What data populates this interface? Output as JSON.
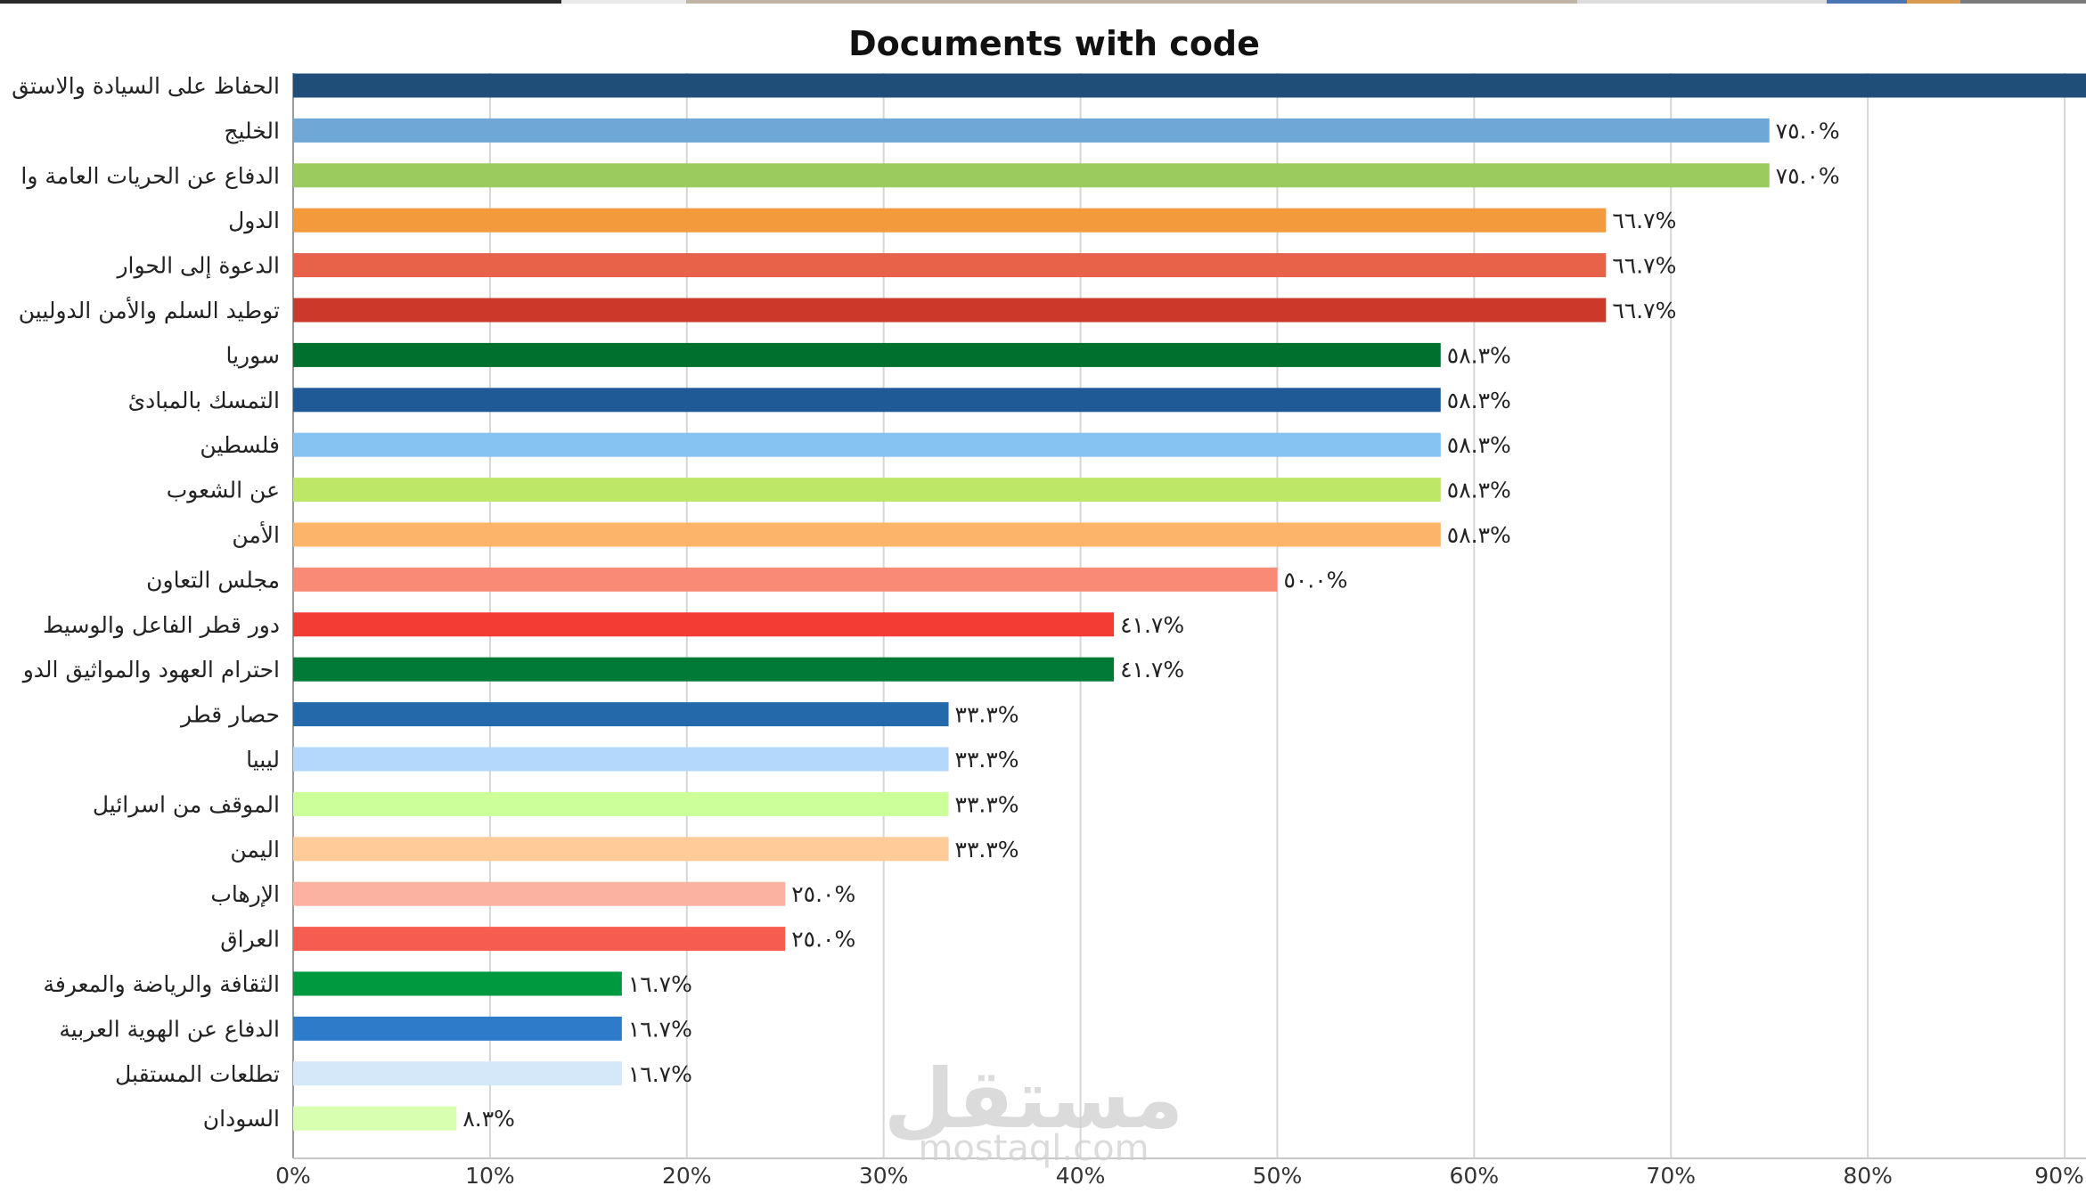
{
  "chart_data": {
    "type": "bar",
    "orientation": "horizontal",
    "title": "Documents with code",
    "xlabel": "",
    "ylabel": "",
    "xlim": [
      0,
      90
    ],
    "x_ticks": [
      "0%",
      "10%",
      "20%",
      "30%",
      "40%",
      "50%",
      "60%",
      "70%",
      "80%",
      "90%"
    ],
    "grid": "vertical",
    "legend": "none",
    "categories": [
      "الحفاظ على السيادة والاستق",
      "الخليج",
      "الدفاع عن الحريات العامة وا",
      "الدول",
      "الدعوة إلى الحوار",
      "توطيد السلم والأمن الدوليين",
      "سوريا",
      "التمسك بالمبادئ",
      "فلسطين",
      "عن الشعوب",
      "الأمن",
      "مجلس التعاون",
      "دور قطر الفاعل والوسيط",
      "احترام العهود والمواثيق الدو",
      "حصار قطر",
      "ليبيا",
      "الموقف من اسرائيل",
      "اليمن",
      "الإرهاب",
      "العراق",
      "الثقافة والرياضة والمعرفة",
      "الدفاع عن الهوية العربية",
      "تطلعات المستقبل",
      "السودان"
    ],
    "values": [
      91.7,
      75.0,
      75.0,
      66.7,
      66.7,
      66.7,
      58.3,
      58.3,
      58.3,
      58.3,
      58.3,
      50.0,
      41.7,
      41.7,
      33.3,
      33.3,
      33.3,
      33.3,
      25.0,
      25.0,
      16.7,
      16.7,
      16.7,
      8.3
    ],
    "value_labels": [
      "",
      "٧٥.٠%",
      "٧٥.٠%",
      "٦٦.٧%",
      "٦٦.٧%",
      "٦٦.٧%",
      "٥٨.٣%",
      "٥٨.٣%",
      "٥٨.٣%",
      "٥٨.٣%",
      "٥٨.٣%",
      "٥٠.٠%",
      "٤١.٧%",
      "٤١.٧%",
      "٣٣.٣%",
      "٣٣.٣%",
      "٣٣.٣%",
      "٣٣.٣%",
      "٢٥.٠%",
      "٢٥.٠%",
      "١٦.٧%",
      "١٦.٧%",
      "١٦.٧%",
      "٨.٣%"
    ],
    "colors": [
      "#1f4e79",
      "#6fa8d6",
      "#9bcb5e",
      "#f39a3c",
      "#e8624a",
      "#cc3829",
      "#00702f",
      "#1f5a96",
      "#86c3f3",
      "#bde867",
      "#fcb36a",
      "#f98b76",
      "#f23c34",
      "#007a36",
      "#246aab",
      "#b3d8fc",
      "#ccff99",
      "#ffcc99",
      "#fcb2a0",
      "#f75c50",
      "#009940",
      "#2e7bc9",
      "#d4e8fa",
      "#d8ffb0"
    ]
  },
  "watermark": {
    "brand": "مستقل",
    "site": "mostaql.com"
  }
}
